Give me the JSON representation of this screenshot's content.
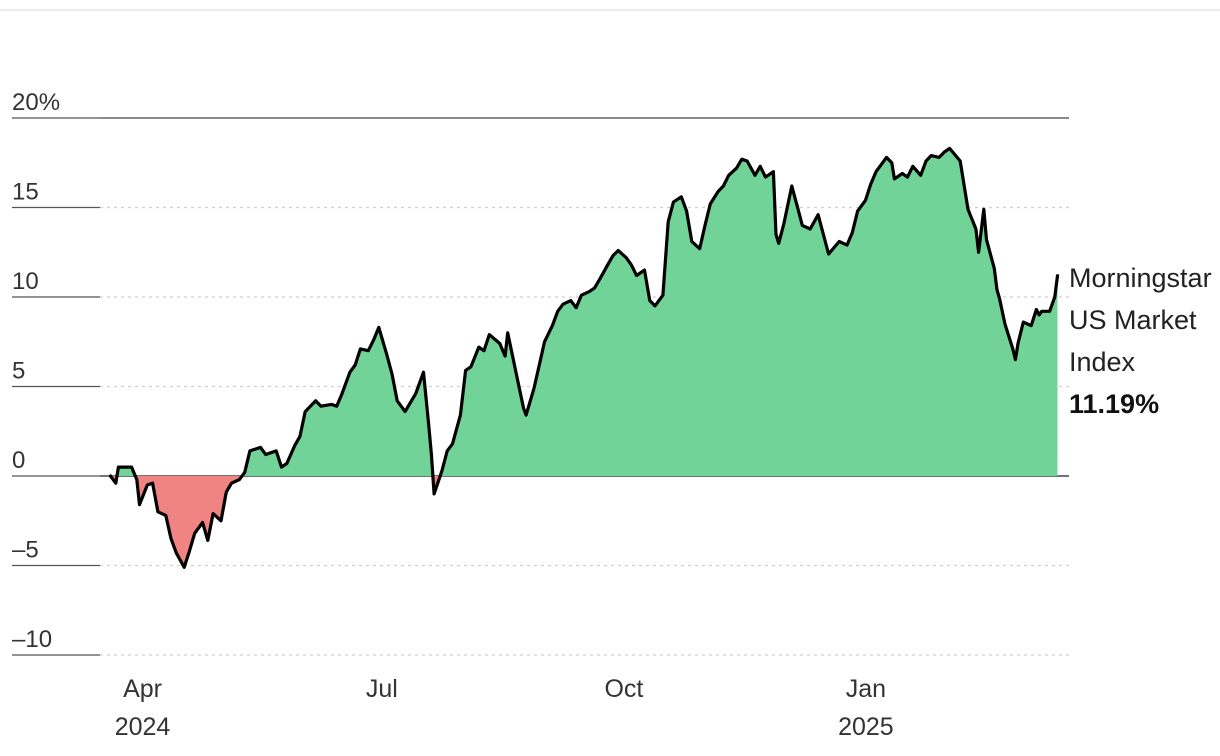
{
  "chart_data": {
    "type": "area",
    "title": "",
    "xlabel": "",
    "ylabel": "",
    "ylim": [
      -10,
      20
    ],
    "yticks": [
      {
        "value": 20,
        "label": "20%"
      },
      {
        "value": 15,
        "label": "15"
      },
      {
        "value": 10,
        "label": "10"
      },
      {
        "value": 5,
        "label": "5"
      },
      {
        "value": 0,
        "label": "0"
      },
      {
        "value": -5,
        "label": "–5"
      },
      {
        "value": -10,
        "label": "–10"
      }
    ],
    "xlim": [
      "2024-03-28",
      "2025-03-31"
    ],
    "xticks": [
      {
        "date": "2024-04-01",
        "label": "Apr",
        "sublabel": "2024"
      },
      {
        "date": "2024-07-01",
        "label": "Jul",
        "sublabel": ""
      },
      {
        "date": "2024-10-01",
        "label": "Oct",
        "sublabel": ""
      },
      {
        "date": "2025-01-01",
        "label": "Jan",
        "sublabel": "2025"
      }
    ],
    "grid": true,
    "colors": {
      "positive": "#72d399",
      "negative": "#f08482",
      "line": "#000000"
    },
    "series": [
      {
        "name": "Morningstar US Market Index",
        "final_label": "11.19%",
        "points": [
          [
            "2024-04-01",
            0.0
          ],
          [
            "2024-04-03",
            -0.4
          ],
          [
            "2024-04-04",
            0.5
          ],
          [
            "2024-04-09",
            0.5
          ],
          [
            "2024-04-11",
            -0.2
          ],
          [
            "2024-04-12",
            -1.6
          ],
          [
            "2024-04-15",
            -0.5
          ],
          [
            "2024-04-17",
            -0.4
          ],
          [
            "2024-04-19",
            -2.0
          ],
          [
            "2024-04-22",
            -2.2
          ],
          [
            "2024-04-24",
            -3.5
          ],
          [
            "2024-04-26",
            -4.3
          ],
          [
            "2024-04-29",
            -5.1
          ],
          [
            "2024-05-01",
            -4.2
          ],
          [
            "2024-05-03",
            -3.2
          ],
          [
            "2024-05-06",
            -2.6
          ],
          [
            "2024-05-08",
            -3.6
          ],
          [
            "2024-05-10",
            -2.1
          ],
          [
            "2024-05-13",
            -2.5
          ],
          [
            "2024-05-15",
            -0.9
          ],
          [
            "2024-05-17",
            -0.4
          ],
          [
            "2024-05-20",
            -0.2
          ],
          [
            "2024-05-22",
            0.2
          ],
          [
            "2024-05-24",
            1.4
          ],
          [
            "2024-05-28",
            1.6
          ],
          [
            "2024-05-30",
            1.2
          ],
          [
            "2024-06-03",
            1.4
          ],
          [
            "2024-06-05",
            0.5
          ],
          [
            "2024-06-07",
            0.7
          ],
          [
            "2024-06-10",
            1.7
          ],
          [
            "2024-06-12",
            2.2
          ],
          [
            "2024-06-14",
            3.6
          ],
          [
            "2024-06-18",
            4.2
          ],
          [
            "2024-06-20",
            3.9
          ],
          [
            "2024-06-24",
            4.0
          ],
          [
            "2024-06-26",
            3.9
          ],
          [
            "2024-06-28",
            4.6
          ],
          [
            "2024-07-01",
            5.8
          ],
          [
            "2024-07-03",
            6.2
          ],
          [
            "2024-07-05",
            7.1
          ],
          [
            "2024-07-08",
            7.0
          ],
          [
            "2024-07-10",
            7.6
          ],
          [
            "2024-07-12",
            8.3
          ],
          [
            "2024-07-15",
            6.8
          ],
          [
            "2024-07-17",
            5.7
          ],
          [
            "2024-07-19",
            4.2
          ],
          [
            "2024-07-22",
            3.6
          ],
          [
            "2024-07-24",
            4.1
          ],
          [
            "2024-07-26",
            4.6
          ],
          [
            "2024-07-29",
            5.8
          ],
          [
            "2024-07-31",
            2.8
          ],
          [
            "2024-08-01",
            1.2
          ],
          [
            "2024-08-02",
            -1.0
          ],
          [
            "2024-08-05",
            0.3
          ],
          [
            "2024-08-07",
            1.4
          ],
          [
            "2024-08-09",
            1.8
          ],
          [
            "2024-08-12",
            3.4
          ],
          [
            "2024-08-14",
            5.9
          ],
          [
            "2024-08-16",
            6.1
          ],
          [
            "2024-08-19",
            7.2
          ],
          [
            "2024-08-21",
            7.0
          ],
          [
            "2024-08-23",
            7.9
          ],
          [
            "2024-08-27",
            7.4
          ],
          [
            "2024-08-29",
            6.7
          ],
          [
            "2024-08-30",
            8.0
          ],
          [
            "2024-09-03",
            5.2
          ],
          [
            "2024-09-05",
            3.8
          ],
          [
            "2024-09-06",
            3.4
          ],
          [
            "2024-09-09",
            4.9
          ],
          [
            "2024-09-11",
            6.2
          ],
          [
            "2024-09-13",
            7.5
          ],
          [
            "2024-09-16",
            8.4
          ],
          [
            "2024-09-18",
            9.2
          ],
          [
            "2024-09-20",
            9.6
          ],
          [
            "2024-09-23",
            9.8
          ],
          [
            "2024-09-25",
            9.4
          ],
          [
            "2024-09-27",
            10.1
          ],
          [
            "2024-09-30",
            10.3
          ],
          [
            "2024-10-02",
            10.5
          ],
          [
            "2024-10-04",
            11.0
          ],
          [
            "2024-10-07",
            11.8
          ],
          [
            "2024-10-09",
            12.3
          ],
          [
            "2024-10-11",
            12.6
          ],
          [
            "2024-10-14",
            12.2
          ],
          [
            "2024-10-16",
            11.8
          ],
          [
            "2024-10-18",
            11.2
          ],
          [
            "2024-10-21",
            11.5
          ],
          [
            "2024-10-23",
            9.8
          ],
          [
            "2024-10-25",
            9.5
          ],
          [
            "2024-10-28",
            10.1
          ],
          [
            "2024-10-30",
            14.2
          ],
          [
            "2024-11-01",
            15.3
          ],
          [
            "2024-11-04",
            15.6
          ],
          [
            "2024-11-06",
            14.8
          ],
          [
            "2024-11-08",
            13.1
          ],
          [
            "2024-11-11",
            12.7
          ],
          [
            "2024-11-13",
            14.0
          ],
          [
            "2024-11-15",
            15.2
          ],
          [
            "2024-11-18",
            15.9
          ],
          [
            "2024-11-20",
            16.2
          ],
          [
            "2024-11-22",
            16.8
          ],
          [
            "2024-11-25",
            17.2
          ],
          [
            "2024-11-27",
            17.7
          ],
          [
            "2024-11-29",
            17.6
          ],
          [
            "2024-12-02",
            16.8
          ],
          [
            "2024-12-04",
            17.3
          ],
          [
            "2024-12-06",
            16.7
          ],
          [
            "2024-12-09",
            17.0
          ],
          [
            "2024-12-10",
            13.5
          ],
          [
            "2024-12-11",
            13.0
          ],
          [
            "2024-12-13",
            14.1
          ],
          [
            "2024-12-16",
            16.2
          ],
          [
            "2024-12-18",
            15.1
          ],
          [
            "2024-12-20",
            14.0
          ],
          [
            "2024-12-23",
            13.8
          ],
          [
            "2024-12-26",
            14.6
          ],
          [
            "2024-12-30",
            12.4
          ],
          [
            "2025-01-03",
            13.1
          ],
          [
            "2025-01-06",
            12.9
          ],
          [
            "2025-01-08",
            13.6
          ],
          [
            "2025-01-10",
            14.8
          ],
          [
            "2025-01-13",
            15.4
          ],
          [
            "2025-01-15",
            16.3
          ],
          [
            "2025-01-17",
            17.0
          ],
          [
            "2025-01-21",
            17.8
          ],
          [
            "2025-01-23",
            17.5
          ],
          [
            "2025-01-24",
            16.6
          ],
          [
            "2025-01-27",
            16.9
          ],
          [
            "2025-01-29",
            16.7
          ],
          [
            "2025-01-31",
            17.3
          ],
          [
            "2025-02-03",
            16.8
          ],
          [
            "2025-02-05",
            17.6
          ],
          [
            "2025-02-07",
            17.9
          ],
          [
            "2025-02-10",
            17.8
          ],
          [
            "2025-02-12",
            18.1
          ],
          [
            "2025-02-14",
            18.3
          ],
          [
            "2025-02-18",
            17.6
          ],
          [
            "2025-02-20",
            15.8
          ],
          [
            "2025-02-21",
            14.9
          ],
          [
            "2025-02-24",
            13.8
          ],
          [
            "2025-02-25",
            12.5
          ],
          [
            "2025-02-27",
            14.9
          ],
          [
            "2025-02-28",
            13.2
          ],
          [
            "2025-03-03",
            11.6
          ],
          [
            "2025-03-04",
            10.4
          ],
          [
            "2025-03-05",
            9.9
          ],
          [
            "2025-03-07",
            8.5
          ],
          [
            "2025-03-10",
            7.1
          ],
          [
            "2025-03-11",
            6.5
          ],
          [
            "2025-03-12",
            7.4
          ],
          [
            "2025-03-14",
            8.6
          ],
          [
            "2025-03-17",
            8.4
          ],
          [
            "2025-03-19",
            9.3
          ],
          [
            "2025-03-20",
            9.0
          ],
          [
            "2025-03-21",
            9.2
          ],
          [
            "2025-03-24",
            9.2
          ],
          [
            "2025-03-26",
            10.0
          ],
          [
            "2025-03-27",
            11.19
          ]
        ]
      }
    ]
  }
}
